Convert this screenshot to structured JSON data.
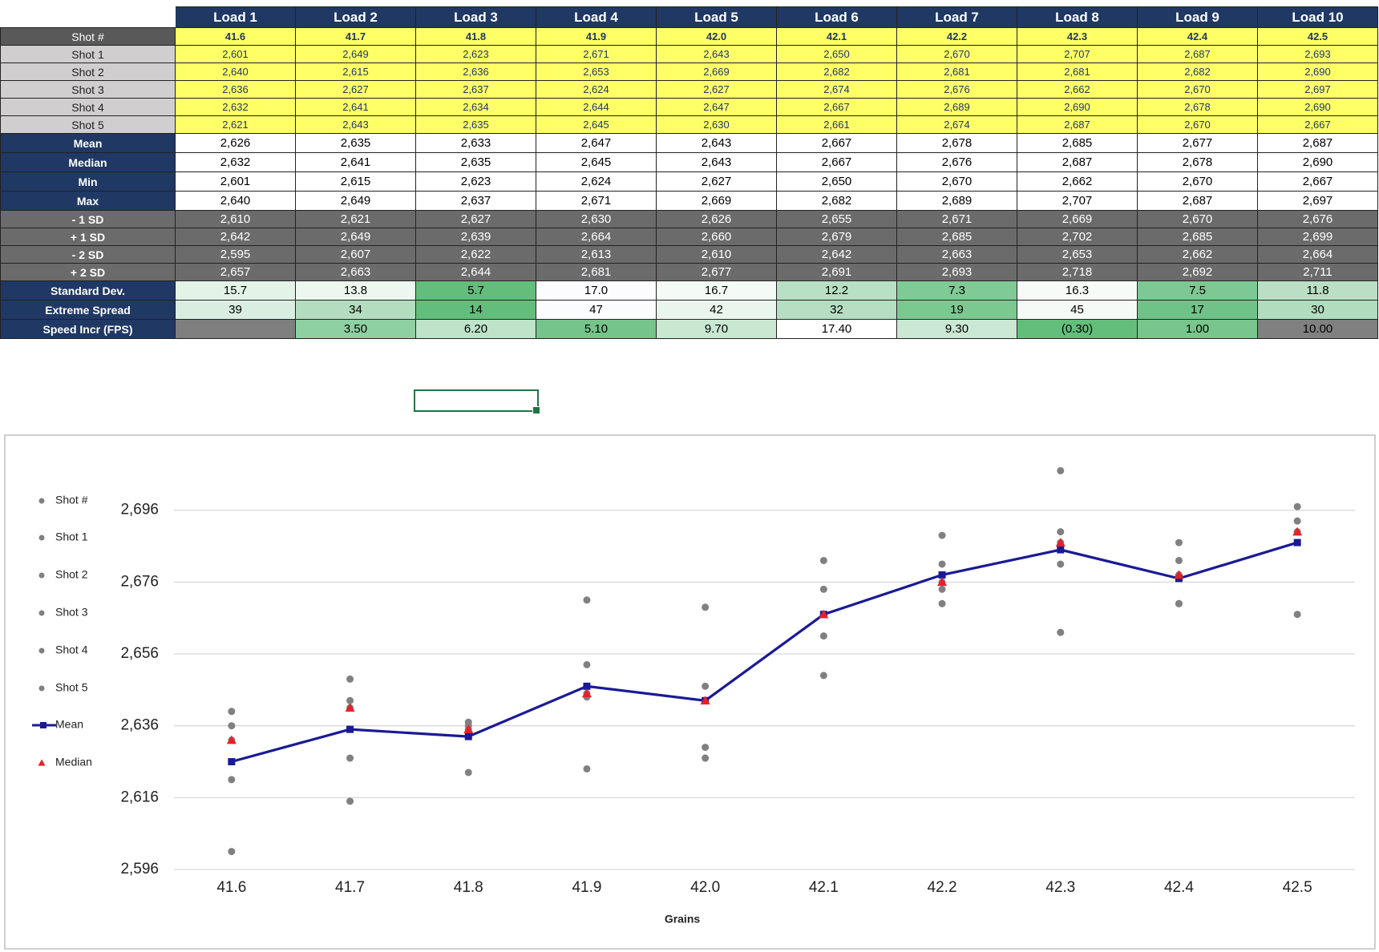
{
  "table": {
    "header": [
      "Load 1",
      "Load 2",
      "Load 3",
      "Load 4",
      "Load 5",
      "Load 6",
      "Load 7",
      "Load 8",
      "Load 9",
      "Load 10"
    ],
    "rows": [
      {
        "label": "Shot #",
        "cells": [
          "41.6",
          "41.7",
          "41.8",
          "41.9",
          "42.0",
          "42.1",
          "42.2",
          "42.3",
          "42.4",
          "42.5"
        ]
      },
      {
        "label": "Shot 1",
        "cells": [
          "2,601",
          "2,649",
          "2,623",
          "2,671",
          "2,643",
          "2,650",
          "2,670",
          "2,707",
          "2,687",
          "2,693"
        ]
      },
      {
        "label": "Shot 2",
        "cells": [
          "2,640",
          "2,615",
          "2,636",
          "2,653",
          "2,669",
          "2,682",
          "2,681",
          "2,681",
          "2,682",
          "2,690"
        ]
      },
      {
        "label": "Shot 3",
        "cells": [
          "2,636",
          "2,627",
          "2,637",
          "2,624",
          "2,627",
          "2,674",
          "2,676",
          "2,662",
          "2,670",
          "2,697"
        ]
      },
      {
        "label": "Shot 4",
        "cells": [
          "2,632",
          "2,641",
          "2,634",
          "2,644",
          "2,647",
          "2,667",
          "2,689",
          "2,690",
          "2,678",
          "2,690"
        ]
      },
      {
        "label": "Shot 5",
        "cells": [
          "2,621",
          "2,643",
          "2,635",
          "2,645",
          "2,630",
          "2,661",
          "2,674",
          "2,687",
          "2,670",
          "2,667"
        ]
      },
      {
        "label": "Mean",
        "cells": [
          "2,626",
          "2,635",
          "2,633",
          "2,647",
          "2,643",
          "2,667",
          "2,678",
          "2,685",
          "2,677",
          "2,687"
        ]
      },
      {
        "label": "Median",
        "cells": [
          "2,632",
          "2,641",
          "2,635",
          "2,645",
          "2,643",
          "2,667",
          "2,676",
          "2,687",
          "2,678",
          "2,690"
        ]
      },
      {
        "label": "Min",
        "cells": [
          "2,601",
          "2,615",
          "2,623",
          "2,624",
          "2,627",
          "2,650",
          "2,670",
          "2,662",
          "2,670",
          "2,667"
        ]
      },
      {
        "label": "Max",
        "cells": [
          "2,640",
          "2,649",
          "2,637",
          "2,671",
          "2,669",
          "2,682",
          "2,689",
          "2,707",
          "2,687",
          "2,697"
        ]
      },
      {
        "label": "- 1 SD",
        "cells": [
          "2,610",
          "2,621",
          "2,627",
          "2,630",
          "2,626",
          "2,655",
          "2,671",
          "2,669",
          "2,670",
          "2,676"
        ]
      },
      {
        "label": "+ 1 SD",
        "cells": [
          "2,642",
          "2,649",
          "2,639",
          "2,664",
          "2,660",
          "2,679",
          "2,685",
          "2,702",
          "2,685",
          "2,699"
        ]
      },
      {
        "label": "- 2 SD",
        "cells": [
          "2,595",
          "2,607",
          "2,622",
          "2,613",
          "2,610",
          "2,642",
          "2,663",
          "2,653",
          "2,662",
          "2,664"
        ]
      },
      {
        "label": "+ 2 SD",
        "cells": [
          "2,657",
          "2,663",
          "2,644",
          "2,681",
          "2,677",
          "2,691",
          "2,693",
          "2,718",
          "2,692",
          "2,711"
        ]
      },
      {
        "label": "Standard Dev.",
        "cells": [
          "15.7",
          "13.8",
          "5.7",
          "17.0",
          "16.7",
          "12.2",
          "7.3",
          "16.3",
          "7.5",
          "11.8"
        ]
      },
      {
        "label": "Extreme Spread",
        "cells": [
          "39",
          "34",
          "14",
          "47",
          "42",
          "32",
          "19",
          "45",
          "17",
          "30"
        ]
      },
      {
        "label": "Speed Incr (FPS)",
        "cells": [
          null,
          "3.50",
          "6.20",
          "5.10",
          "9.70",
          "17.40",
          "9.30",
          "(0.30)",
          "1.00",
          "10.00"
        ]
      }
    ]
  },
  "chart_data": {
    "type": "line",
    "x_label": "Grains",
    "categories": [
      "41.6",
      "41.7",
      "41.8",
      "41.9",
      "42.0",
      "42.1",
      "42.2",
      "42.3",
      "42.4",
      "42.5"
    ],
    "ylim": [
      2596,
      2712
    ],
    "yticks": [
      {
        "value": 2596,
        "label": "2,596"
      },
      {
        "value": 2616,
        "label": "2,616"
      },
      {
        "value": 2636,
        "label": "2,636"
      },
      {
        "value": 2656,
        "label": "2,656"
      },
      {
        "value": 2676,
        "label": "2,676"
      },
      {
        "value": 2696,
        "label": "2,696"
      }
    ],
    "grid": true,
    "legend": "left",
    "series": [
      {
        "name": "Shot #",
        "type": "scatter",
        "color": "#808080",
        "values": [
          null,
          null,
          null,
          null,
          null,
          null,
          null,
          null,
          null,
          null
        ]
      },
      {
        "name": "Shot 1",
        "type": "scatter",
        "color": "#808080",
        "values": [
          2601,
          2649,
          2623,
          2671,
          2643,
          2650,
          2670,
          2707,
          2687,
          2693
        ]
      },
      {
        "name": "Shot 2",
        "type": "scatter",
        "color": "#808080",
        "values": [
          2640,
          2615,
          2636,
          2653,
          2669,
          2682,
          2681,
          2681,
          2682,
          2690
        ]
      },
      {
        "name": "Shot 3",
        "type": "scatter",
        "color": "#808080",
        "values": [
          2636,
          2627,
          2637,
          2624,
          2627,
          2674,
          2676,
          2662,
          2670,
          2697
        ]
      },
      {
        "name": "Shot 4",
        "type": "scatter",
        "color": "#808080",
        "values": [
          2632,
          2641,
          2634,
          2644,
          2647,
          2667,
          2689,
          2690,
          2678,
          2690
        ]
      },
      {
        "name": "Shot 5",
        "type": "scatter",
        "color": "#808080",
        "values": [
          2621,
          2643,
          2635,
          2645,
          2630,
          2661,
          2674,
          2687,
          2670,
          2667
        ]
      },
      {
        "name": "Mean",
        "type": "line",
        "color": "#1a1a96",
        "values": [
          2626,
          2635,
          2633,
          2647,
          2643,
          2667,
          2678,
          2685,
          2677,
          2687
        ]
      },
      {
        "name": "Median",
        "type": "triangle",
        "color": "#e8202a",
        "values": [
          2632,
          2641,
          2635,
          2645,
          2643,
          2667,
          2676,
          2687,
          2678,
          2690
        ]
      }
    ]
  }
}
